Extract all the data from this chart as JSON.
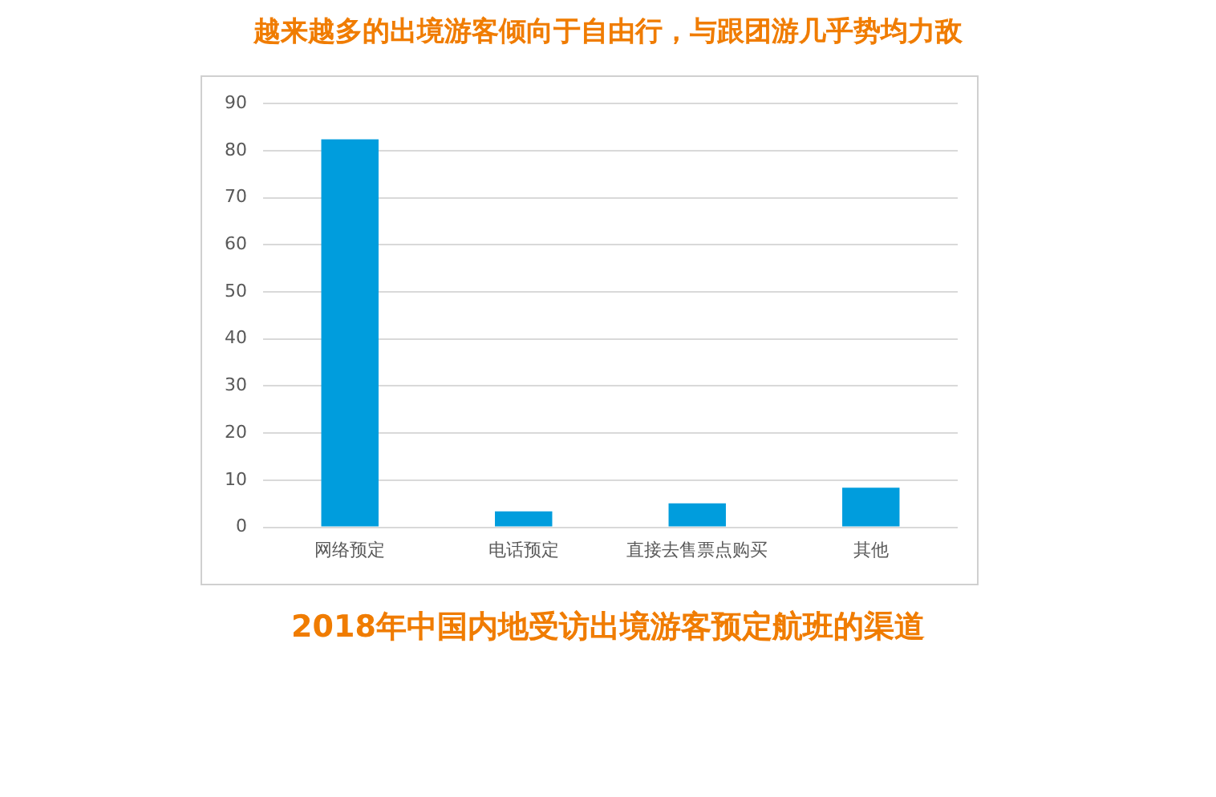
{
  "chart_data": {
    "type": "bar",
    "title": "越来越多的出境游客倾向于自由行，与跟团游几乎势均力敌",
    "subtitle": "2018年中国内地受访出境游客预定航班的渠道",
    "categories": [
      "网络预定",
      "电话预定",
      "直接去售票点购买",
      "其他"
    ],
    "values": [
      82.4,
      3.4,
      5.1,
      8.4
    ],
    "color": "#009ddd",
    "ylim": [
      0,
      90
    ],
    "yticks": [
      0,
      10,
      20,
      30,
      40,
      50,
      60,
      70,
      80,
      90
    ],
    "grid": "y",
    "legend": false
  }
}
